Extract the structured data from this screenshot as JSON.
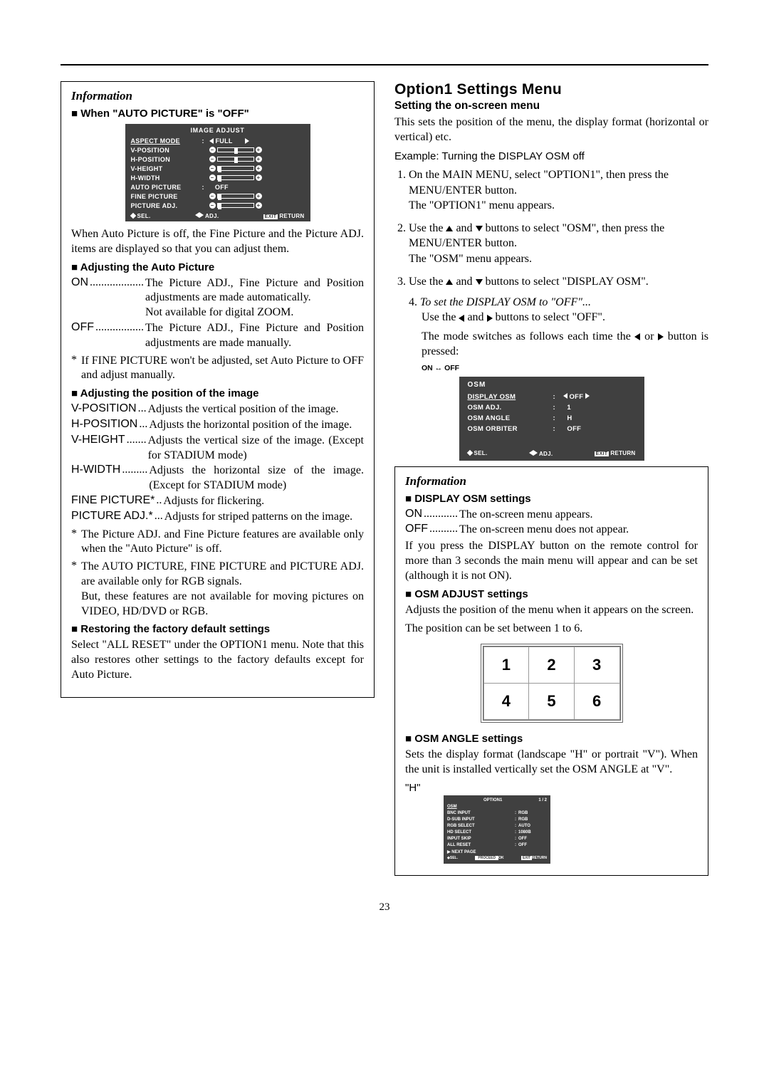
{
  "page_number": "23",
  "left": {
    "info_title": "Information",
    "when_h": "When \"AUTO PICTURE\" is \"OFF\"",
    "osd1": {
      "title": "IMAGE ADJUST",
      "rows": [
        {
          "label": "ASPECT MODE",
          "type": "pick",
          "val": "FULL",
          "underline": true
        },
        {
          "label": "V-POSITION",
          "type": "slider",
          "pos": 0.5
        },
        {
          "label": "H-POSITION",
          "type": "slider",
          "pos": 0.5
        },
        {
          "label": "V-HEIGHT",
          "type": "slider",
          "pos": 0.0
        },
        {
          "label": "H-WIDTH",
          "type": "slider",
          "pos": 0.0
        },
        {
          "label": "AUTO PICTURE",
          "type": "text",
          "val": "OFF"
        },
        {
          "label": "FINE PICTURE",
          "type": "slider",
          "pos": 0.0
        },
        {
          "label": "PICTURE ADJ.",
          "type": "slider",
          "pos": 0.0
        }
      ],
      "foot_sel": "SEL.",
      "foot_adj": "ADJ.",
      "foot_exit": "EXIT",
      "foot_return": "RETURN"
    },
    "after_osd_p": "When Auto Picture is off, the Fine Picture and the Picture ADJ. items are displayed so that you can adjust them.",
    "adj_auto_h": "Adjusting the Auto Picture",
    "on_term": "ON",
    "on_dots": "...................",
    "on_def": "The Picture ADJ., Fine Picture and Position adjustments are made automatically.\nNot available for digital ZOOM.",
    "off_term": "OFF",
    "off_dots": ".................",
    "off_def": "The Picture ADJ., Fine Picture and Position adjustments are made manually.",
    "fine_note": "If FINE PICTURE won't be adjusted, set Auto Picture to OFF and adjust manually.",
    "adj_pos_h": "Adjusting the position of the image",
    "defs": [
      {
        "term": "V-POSITION",
        "dots": " ...",
        "def": "Adjusts the vertical position of the image."
      },
      {
        "term": "H-POSITION",
        "dots": " ...",
        "def": "Adjusts the horizontal position of the image."
      },
      {
        "term": "V-HEIGHT",
        "dots": " .......",
        "def": "Adjusts the vertical size of the image. (Except for STADIUM mode)"
      },
      {
        "term": "H-WIDTH",
        "dots": " .........",
        "def": "Adjusts the horizontal size of the image. (Except for STADIUM mode)"
      },
      {
        "term": "FINE PICTURE*",
        "dots": " ..",
        "def": "Adjusts for flickering."
      },
      {
        "term": "PICTURE ADJ.*",
        "dots": " ...",
        "def": "Adjusts for striped patterns on the image."
      }
    ],
    "star1": "The Picture ADJ. and Fine Picture features are available only when the \"Auto Picture\" is off.",
    "star2": "The AUTO PICTURE, FINE PICTURE and PICTURE ADJ. are available only for RGB signals.\nBut, these features are not available for moving pictures on VIDEO, HD/DVD or RGB.",
    "restore_h": "Restoring the factory default settings",
    "restore_p": "Select \"ALL RESET\" under the OPTION1 menu. Note that this also restores other settings to the factory defaults except for Auto Picture."
  },
  "right": {
    "section_h": "Option1 Settings Menu",
    "setting_h": "Setting the on-screen menu",
    "intro_p": "This sets the position of the menu, the display format (horizontal or vertical) etc.",
    "example": "Example: Turning the DISPLAY OSM off",
    "steps": [
      "On the MAIN MENU, select \"OPTION1\", then press the MENU/ENTER button.\nThe \"OPTION1\" menu appears.",
      "Use the ▲ and ▼ buttons to select \"OSM\", then press the MENU/ENTER button.\nThe \"OSM\" menu appears.",
      "Use the ▲ and ▼ buttons to select \"DISPLAY OSM\"."
    ],
    "step4_lead": "To set the DISPLAY OSM to \"OFF\"...",
    "step4_a": "Use the ◀ and ▶ buttons to select \"OFF\".",
    "step4_b": "The mode switches as follows each time the ◀ or ▶ button is pressed:",
    "on_off": "ON ↔ OFF",
    "osd2": {
      "title": "OSM",
      "rows": [
        {
          "label": "DISPLAY OSM",
          "val": "OFF",
          "underline": true,
          "arrows": true
        },
        {
          "label": "OSM ADJ.",
          "val": "1"
        },
        {
          "label": "OSM ANGLE",
          "val": "H"
        },
        {
          "label": "OSM ORBITER",
          "val": "OFF"
        }
      ],
      "foot_sel": "SEL.",
      "foot_adj": "ADJ.",
      "foot_exit": "EXIT",
      "foot_return": "RETURN"
    },
    "info_title": "Information",
    "dosm_h": "DISPLAY OSM settings",
    "dosm_on_term": "ON",
    "dosm_on_dots": "............",
    "dosm_on_def": "The on-screen menu appears.",
    "dosm_off_term": "OFF",
    "dosm_off_dots": "..........",
    "dosm_off_def": "The on-screen menu does not appear.",
    "dosm_p": "If you press the DISPLAY button on the remote control for more than 3 seconds the main menu will appear and can be set (although it is not ON).",
    "oadj_h": "OSM ADJUST settings",
    "oadj_p1": "Adjusts the position of the menu when it appears on the screen.",
    "oadj_p2": "The position can be set between 1 to 6.",
    "grid": [
      "1",
      "2",
      "3",
      "4",
      "5",
      "6"
    ],
    "oangle_h": "OSM ANGLE settings",
    "oangle_p": "Sets the display format (landscape \"H\" or portrait \"V\"). When the unit is installed vertically set the OSM ANGLE at \"V\".",
    "h_label": "\"H\"",
    "osd_tiny": {
      "title": "OPTION1",
      "page": "1 / 2",
      "rows": [
        {
          "l": "OSM",
          "r": ""
        },
        {
          "l": "BNC INPUT",
          "r": "RGB"
        },
        {
          "l": "D-SUB INPUT",
          "r": "RGB"
        },
        {
          "l": "RGB SELECT",
          "r": "AUTO"
        },
        {
          "l": "HD SELECT",
          "r": "1080B"
        },
        {
          "l": "INPUT SKIP",
          "r": "OFF"
        },
        {
          "l": "ALL RESET",
          "r": "OFF"
        }
      ],
      "next": "NEXT PAGE",
      "sel": "SEL.",
      "ok": "OK",
      "exit": "EXIT",
      "ret": "RETURN"
    }
  }
}
